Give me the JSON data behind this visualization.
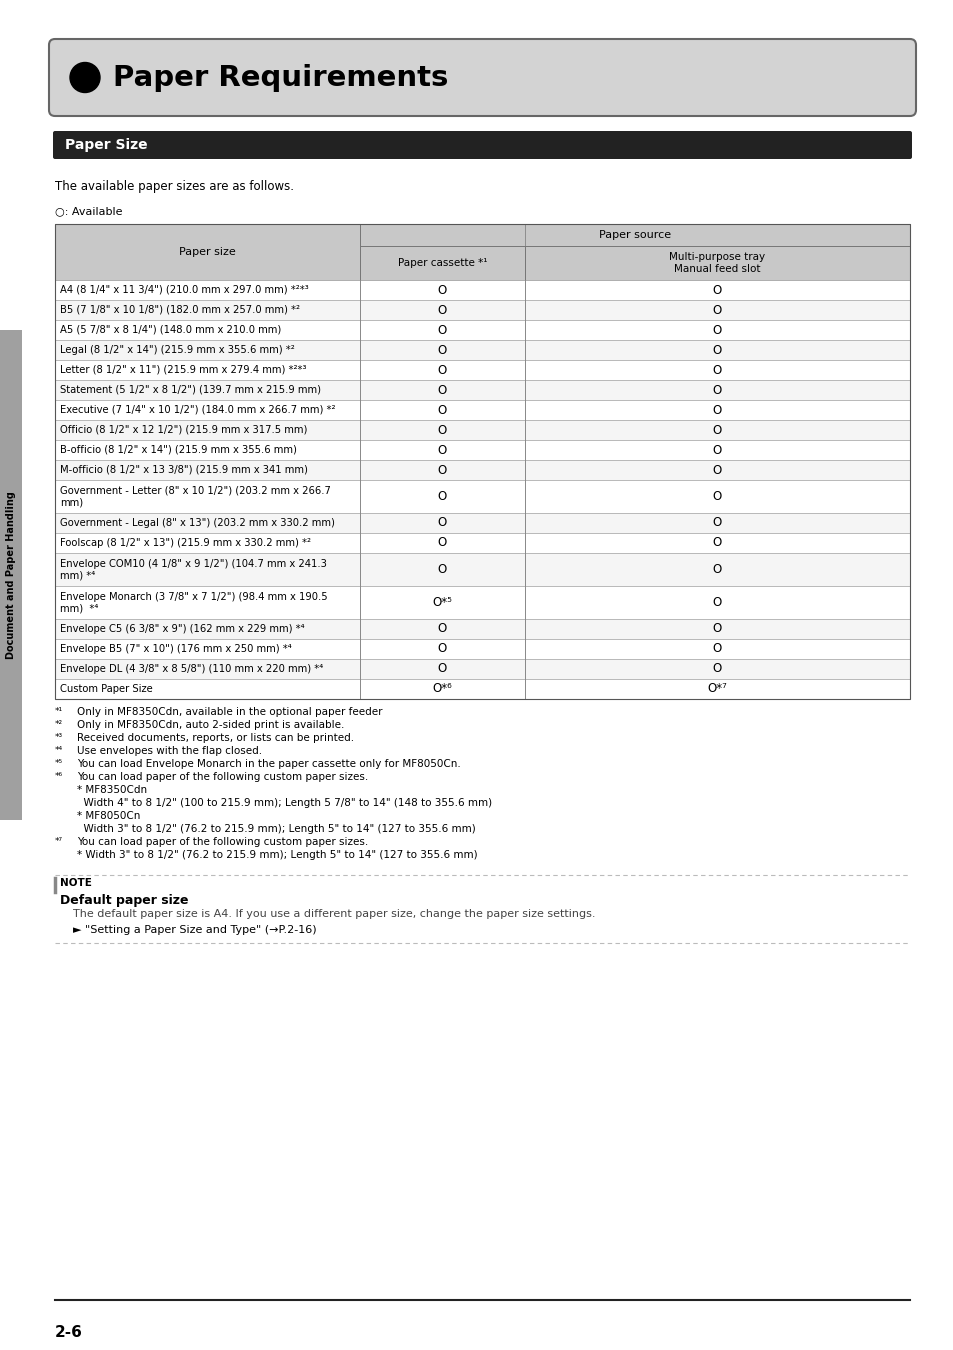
{
  "title": "Paper Requirements",
  "section_title": "Paper Size",
  "intro_text": "The available paper sizes are as follows.",
  "available_label": "○: Available",
  "table_header_col1": "Paper size",
  "table_header_source": "Paper source",
  "table_header_col2": "Paper cassette *¹",
  "table_header_col3": "Multi-purpose tray\nManual feed slot",
  "table_rows": [
    [
      "A4 (8 1/4\" x 11 3/4\") (210.0 mm x 297.0 mm) *²*³",
      "O",
      "O"
    ],
    [
      "B5 (7 1/8\" x 10 1/8\") (182.0 mm x 257.0 mm) *²",
      "O",
      "O"
    ],
    [
      "A5 (5 7/8\" x 8 1/4\") (148.0 mm x 210.0 mm)",
      "O",
      "O"
    ],
    [
      "Legal (8 1/2\" x 14\") (215.9 mm x 355.6 mm) *²",
      "O",
      "O"
    ],
    [
      "Letter (8 1/2\" x 11\") (215.9 mm x 279.4 mm) *²*³",
      "O",
      "O"
    ],
    [
      "Statement (5 1/2\" x 8 1/2\") (139.7 mm x 215.9 mm)",
      "O",
      "O"
    ],
    [
      "Executive (7 1/4\" x 10 1/2\") (184.0 mm x 266.7 mm) *²",
      "O",
      "O"
    ],
    [
      "Officio (8 1/2\" x 12 1/2\") (215.9 mm x 317.5 mm)",
      "O",
      "O"
    ],
    [
      "B-officio (8 1/2\" x 14\") (215.9 mm x 355.6 mm)",
      "O",
      "O"
    ],
    [
      "M-officio (8 1/2\" x 13 3/8\") (215.9 mm x 341 mm)",
      "O",
      "O"
    ],
    [
      "Government - Letter (8\" x 10 1/2\") (203.2 mm x 266.7\nmm)",
      "O",
      "O"
    ],
    [
      "Government - Legal (8\" x 13\") (203.2 mm x 330.2 mm)",
      "O",
      "O"
    ],
    [
      "Foolscap (8 1/2\" x 13\") (215.9 mm x 330.2 mm) *²",
      "O",
      "O"
    ],
    [
      "Envelope COM10 (4 1/8\" x 9 1/2\") (104.7 mm x 241.3\nmm) *⁴",
      "O",
      "O"
    ],
    [
      "Envelope Monarch (3 7/8\" x 7 1/2\") (98.4 mm x 190.5\nmm)  *⁴",
      "O*⁵",
      "O"
    ],
    [
      "Envelope C5 (6 3/8\" x 9\") (162 mm x 229 mm) *⁴",
      "O",
      "O"
    ],
    [
      "Envelope B5 (7\" x 10\") (176 mm x 250 mm) *⁴",
      "O",
      "O"
    ],
    [
      "Envelope DL (4 3/8\" x 8 5/8\") (110 mm x 220 mm) *⁴",
      "O",
      "O"
    ],
    [
      "Custom Paper Size",
      "O*⁶",
      "O*⁷"
    ]
  ],
  "footnote_lines": [
    [
      "*¹",
      "Only in MF8350Cdn, available in the optional paper feeder"
    ],
    [
      "*²",
      "Only in MF8350Cdn, auto 2-sided print is available."
    ],
    [
      "*³",
      "Received documents, reports, or lists can be printed."
    ],
    [
      "*⁴",
      "Use envelopes with the flap closed."
    ],
    [
      "*⁵",
      "You can load Envelope Monarch in the paper cassette only for MF8050Cn."
    ],
    [
      "*⁶",
      "You can load paper of the following custom paper sizes."
    ],
    [
      "",
      "* MF8350Cdn"
    ],
    [
      "",
      "  Width 4\" to 8 1/2\" (100 to 215.9 mm); Length 5 7/8\" to 14\" (148 to 355.6 mm)"
    ],
    [
      "",
      "* MF8050Cn"
    ],
    [
      "",
      "  Width 3\" to 8 1/2\" (76.2 to 215.9 mm); Length 5\" to 14\" (127 to 355.6 mm)"
    ],
    [
      "*⁷",
      "You can load paper of the following custom paper sizes."
    ],
    [
      "",
      "* Width 3\" to 8 1/2\" (76.2 to 215.9 mm); Length 5\" to 14\" (127 to 355.6 mm)"
    ]
  ],
  "note_title": "Default paper size",
  "note_text": "The default paper size is A4. If you use a different paper size, change the paper size settings.",
  "note_ref": "► \"Setting a Paper Size and Type\" (→P.2-16)",
  "page_number": "2-6",
  "sidebar_text": "Document and Paper Handling",
  "bg_color": "#ffffff",
  "header_bg": "#d3d3d3",
  "section_bg": "#222222",
  "table_header_bg": "#c8c8c8",
  "sidebar_bg": "#a0a0a0"
}
